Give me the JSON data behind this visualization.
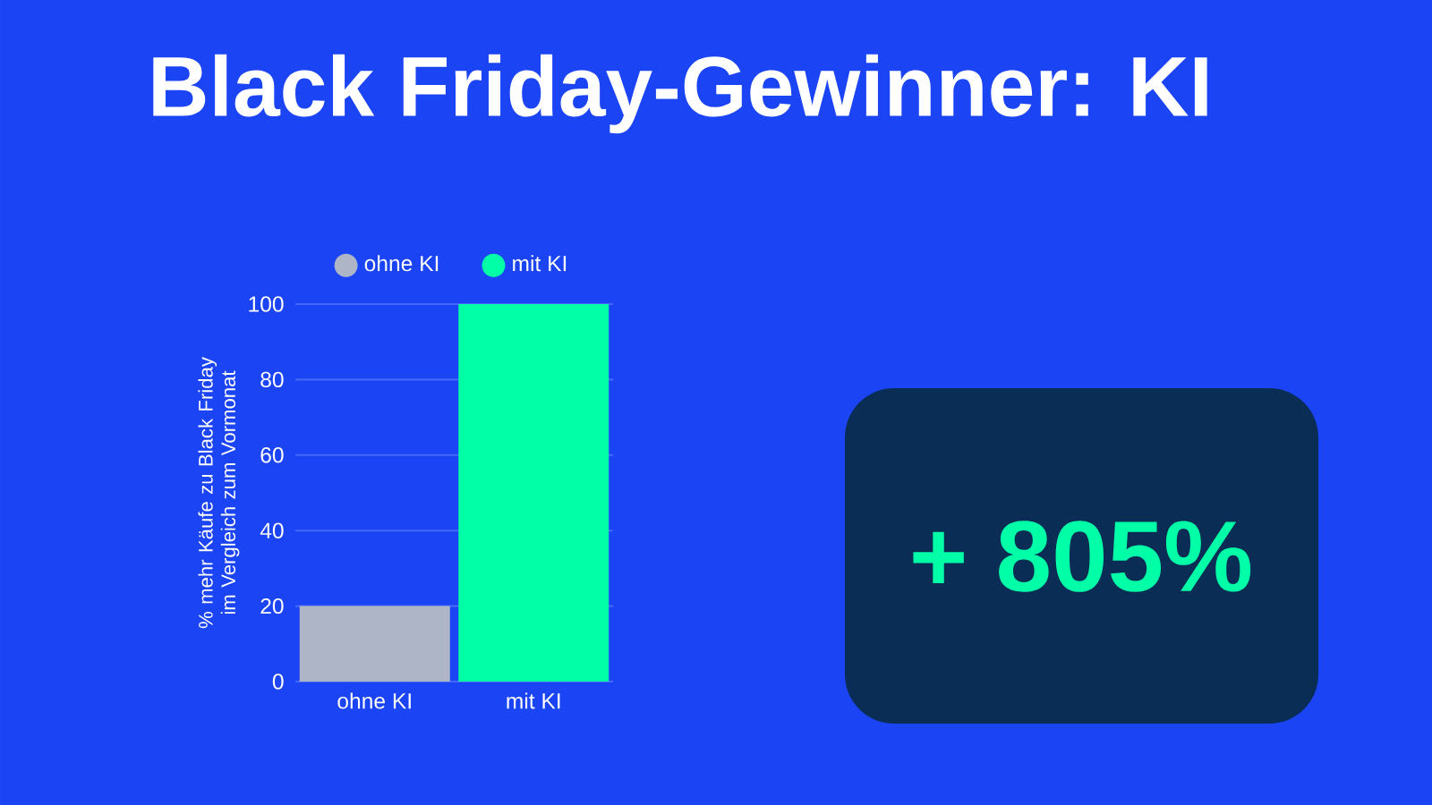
{
  "chart_data": {
    "type": "bar",
    "title": "Black Friday-Gewinner: KI",
    "ylabel": "% mehr Käufe zu Black Friday im Vergleich zum Vormonat",
    "categories": [
      "ohne KI",
      "mit KI"
    ],
    "series": [
      {
        "name": "ohne KI",
        "color": "#adb5c6",
        "values": [
          20,
          null
        ]
      },
      {
        "name": "mit KI",
        "color": "#00ffa6",
        "values": [
          null,
          100
        ]
      }
    ],
    "ylim": [
      0,
      100
    ],
    "yticks": [
      0,
      20,
      40,
      60,
      80,
      100
    ],
    "grid": "y",
    "legend": "top",
    "annotations": [
      "+ 805%"
    ]
  }
}
